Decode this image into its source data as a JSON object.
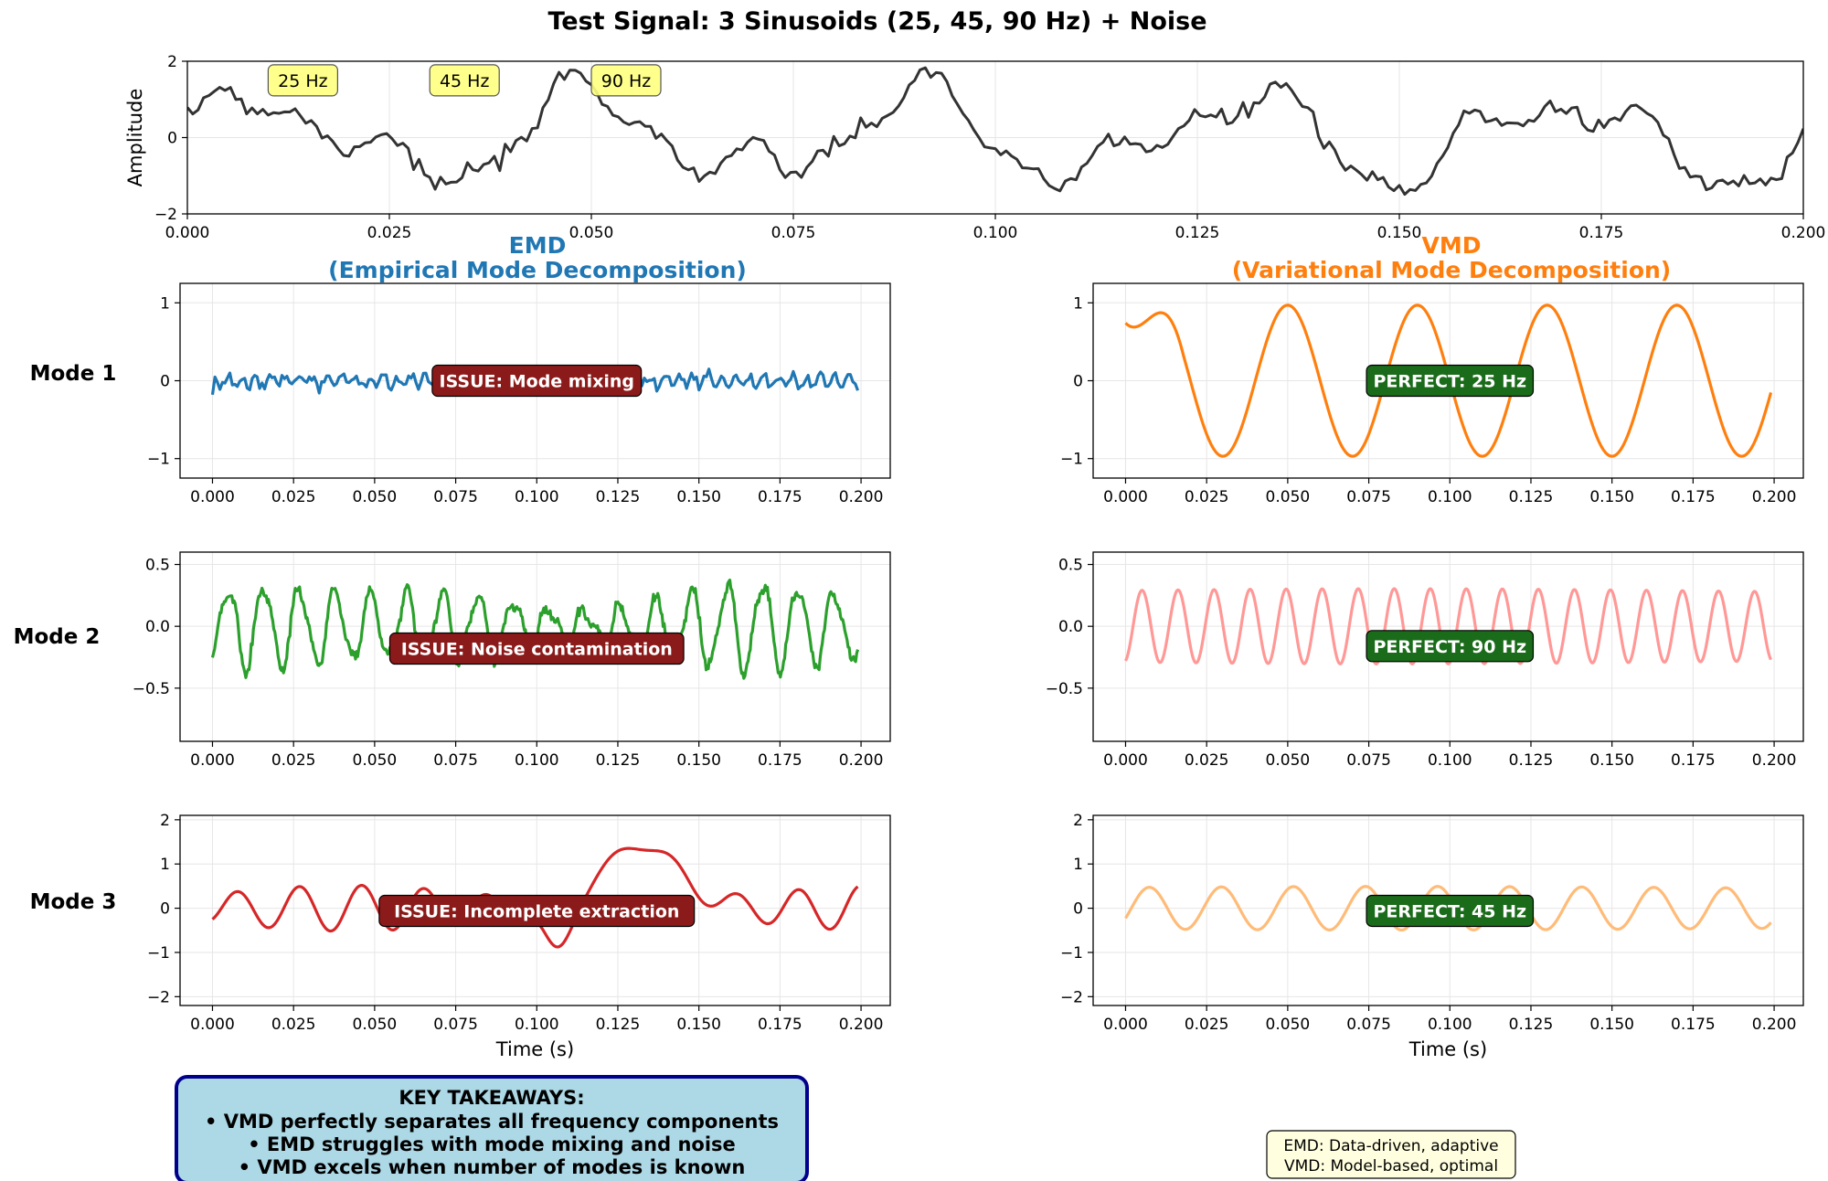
{
  "figure": {
    "title": "Test Signal: 3 Sinusoids (25, 45, 90 Hz) + Noise",
    "emd_header": [
      "EMD",
      "(Empirical Mode Decomposition)"
    ],
    "vmd_header": [
      "VMD",
      "(Variational Mode Decomposition)"
    ],
    "row_labels": [
      "Mode 1",
      "Mode 2",
      "Mode 3"
    ],
    "takeaways": {
      "title": "KEY TAKEAWAYS:",
      "lines": [
        "• VMD perfectly separates all frequency components",
        "• EMD struggles with mode mixing and noise",
        "• VMD excels when number of modes is known"
      ]
    },
    "note_lines": [
      "EMD: Data-driven, adaptive",
      "VMD: Model-based, optimal"
    ],
    "colors": {
      "signal": "#333333",
      "emd_mode1": "#1f77b4",
      "emd_mode2": "#2ca02c",
      "emd_mode3": "#d62728",
      "vmd_mode1": "#ff7f0e",
      "vmd_mode2": "#ff9896",
      "vmd_mode3": "#ffbb78",
      "emd_title": "#1f77b4",
      "vmd_title": "#ff7f0e",
      "issue_box": "#8b1a1a",
      "perfect_box": "#1a6b1a",
      "freq_label_box": "#ffff80",
      "takeaway_box": "#add8e6",
      "takeaway_border": "#00008b",
      "note_box": "#ffffe0"
    }
  },
  "chart_data": [
    {
      "id": "signal",
      "type": "line",
      "ylabel": "Amplitude",
      "xlim": [
        0,
        0.2
      ],
      "ylim": [
        -2,
        2
      ],
      "xticks": [
        "0.000",
        "0.025",
        "0.050",
        "0.075",
        "0.100",
        "0.125",
        "0.150",
        "0.175",
        "0.200"
      ],
      "yticks": [
        "−2",
        "0",
        "2"
      ],
      "grid": true,
      "components_hz": [
        25,
        45,
        90
      ],
      "freq_labels": [
        {
          "text": "25 Hz",
          "x": 0.01,
          "y": 1.5
        },
        {
          "text": "45 Hz",
          "x": 0.03,
          "y": 1.5
        },
        {
          "text": "90 Hz",
          "x": 0.05,
          "y": 1.5
        }
      ]
    },
    {
      "id": "emd1",
      "type": "line",
      "xlim": [
        -0.01,
        0.209
      ],
      "ylim": [
        -1.25,
        1.25
      ],
      "xticks": [
        "0.000",
        "0.025",
        "0.050",
        "0.075",
        "0.100",
        "0.125",
        "0.150",
        "0.175",
        "0.200"
      ],
      "yticks": [
        "−1",
        "0",
        "1"
      ],
      "grid": true,
      "badge": {
        "text": "ISSUE: Mode mixing",
        "x": 0.1,
        "y": 0
      }
    },
    {
      "id": "emd2",
      "type": "line",
      "xlim": [
        -0.01,
        0.209
      ],
      "ylim": [
        -0.93,
        0.6
      ],
      "xticks": [
        "0.000",
        "0.025",
        "0.050",
        "0.075",
        "0.100",
        "0.125",
        "0.150",
        "0.175",
        "0.200"
      ],
      "yticks": [
        "−0.5",
        "0.0",
        "0.5"
      ],
      "grid": true,
      "badge": {
        "text": "ISSUE: Noise contamination",
        "x": 0.1,
        "y": -0.18
      }
    },
    {
      "id": "emd3",
      "type": "line",
      "xlabel": "Time (s)",
      "xlim": [
        -0.01,
        0.209
      ],
      "ylim": [
        -2.2,
        2.1
      ],
      "xticks": [
        "0.000",
        "0.025",
        "0.050",
        "0.075",
        "0.100",
        "0.125",
        "0.150",
        "0.175",
        "0.200"
      ],
      "yticks": [
        "−2",
        "−1",
        "0",
        "1",
        "2"
      ],
      "grid": true,
      "badge": {
        "text": "ISSUE: Incomplete extraction",
        "x": 0.1,
        "y": -0.06
      }
    },
    {
      "id": "vmd1",
      "type": "line",
      "xlim": [
        -0.01,
        0.209
      ],
      "ylim": [
        -1.25,
        1.25
      ],
      "xticks": [
        "0.000",
        "0.025",
        "0.050",
        "0.075",
        "0.100",
        "0.125",
        "0.150",
        "0.175",
        "0.200"
      ],
      "yticks": [
        "−1",
        "0",
        "1"
      ],
      "grid": true,
      "badge": {
        "text": "PERFECT: 25 Hz",
        "x": 0.1,
        "y": 0
      }
    },
    {
      "id": "vmd2",
      "type": "line",
      "xlim": [
        -0.01,
        0.209
      ],
      "ylim": [
        -0.93,
        0.6
      ],
      "xticks": [
        "0.000",
        "0.025",
        "0.050",
        "0.075",
        "0.100",
        "0.125",
        "0.150",
        "0.175",
        "0.200"
      ],
      "yticks": [
        "−0.5",
        "0.0",
        "0.5"
      ],
      "grid": true,
      "badge": {
        "text": "PERFECT: 90 Hz",
        "x": 0.1,
        "y": -0.16
      }
    },
    {
      "id": "vmd3",
      "type": "line",
      "xlabel": "Time (s)",
      "xlim": [
        -0.01,
        0.209
      ],
      "ylim": [
        -2.2,
        2.1
      ],
      "xticks": [
        "0.000",
        "0.025",
        "0.050",
        "0.075",
        "0.100",
        "0.125",
        "0.150",
        "0.175",
        "0.200"
      ],
      "yticks": [
        "−2",
        "−1",
        "0",
        "1",
        "2"
      ],
      "grid": true,
      "badge": {
        "text": "PERFECT: 45 Hz",
        "x": 0.1,
        "y": -0.06
      }
    }
  ]
}
